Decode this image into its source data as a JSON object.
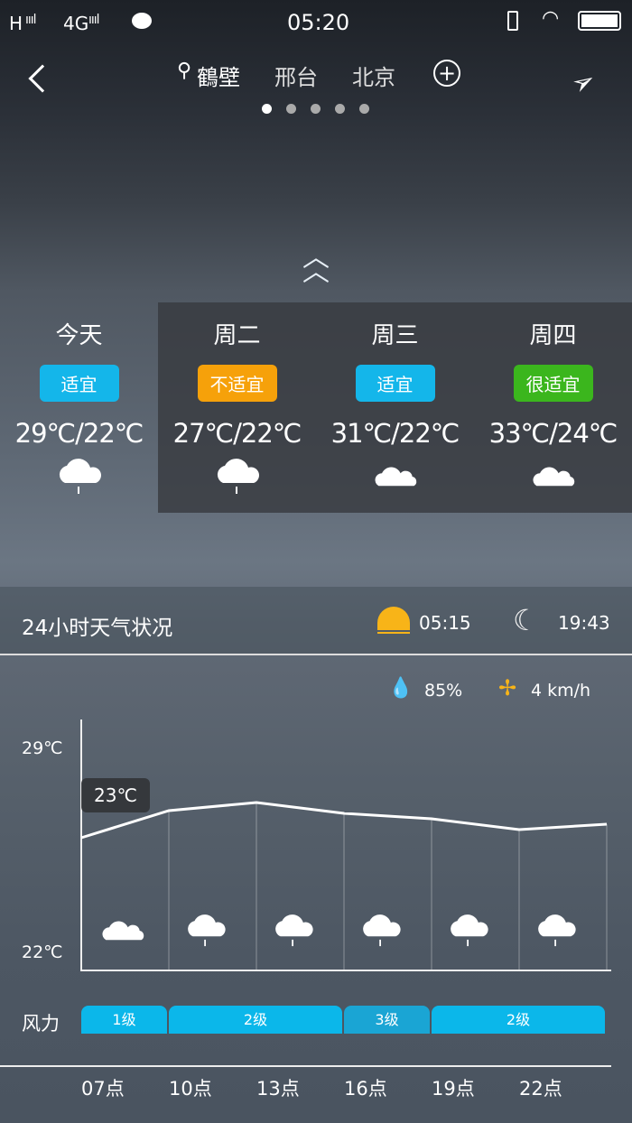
{
  "status": {
    "network_left": "H",
    "network_right": "4G",
    "time": "05:20"
  },
  "nav": {
    "cities": [
      {
        "name": "鶴壁",
        "current": true
      },
      {
        "name": "邢台"
      },
      {
        "name": "北京"
      }
    ],
    "page_count": 5,
    "active_page": 1
  },
  "forecast": [
    {
      "day": "今天",
      "suit": "适宜",
      "suit_color": "#14b6ea",
      "temp": "29℃/22℃",
      "icon": "rain-cloud-icon"
    },
    {
      "day": "周二",
      "suit": "不适宜",
      "suit_color": "#f6a10a",
      "temp": "27℃/22℃",
      "icon": "rain-cloud-icon"
    },
    {
      "day": "周三",
      "suit": "适宜",
      "suit_color": "#14b6ea",
      "temp": "31℃/22℃",
      "icon": "cloudy-icon"
    },
    {
      "day": "周四",
      "suit": "很适宜",
      "suit_color": "#3bb61d",
      "temp": "33℃/24℃",
      "icon": "cloudy-icon"
    }
  ],
  "hourly": {
    "title": "24小时天气状况",
    "sunrise": "05:15",
    "sunset": "19:43",
    "humidity": "85%",
    "wind_speed": "4 km/h",
    "y_max_label": "29℃",
    "y_min_label": "22℃",
    "current_temp_label": "23℃",
    "hours": [
      "07点",
      "10点",
      "13点",
      "16点",
      "19点",
      "22点"
    ],
    "temps": [
      23,
      24,
      24.3,
      23.9,
      23.7,
      23.3,
      23.5
    ],
    "wind_label": "风力",
    "wind": [
      {
        "level": "1级",
        "span": 1
      },
      {
        "level": "2级",
        "span": 2
      },
      {
        "level": "3级",
        "span": 1
      },
      {
        "level": "2级",
        "span": 2
      }
    ]
  }
}
